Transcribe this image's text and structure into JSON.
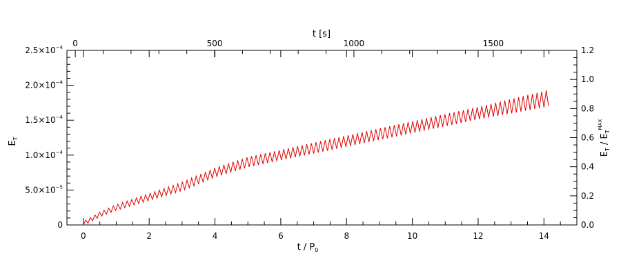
{
  "chart_data": {
    "type": "line",
    "title": "",
    "xlabel": "t / P",
    "xlabel_sub": "0",
    "top_xlabel": "t [s]",
    "ylabel": "E",
    "ylabel_sub": "T",
    "right_ylabel": "E",
    "right_ylabel_sub": "T",
    "right_ylabel_frac": "/ E",
    "right_ylabel_frac_sub": "T",
    "right_ylabel_frac_sup": "MAX",
    "xlim": [
      -0.5,
      15
    ],
    "ylim": [
      0,
      0.00025
    ],
    "top_xlim": [
      -30,
      1800
    ],
    "right_ylim": [
      0,
      1.2
    ],
    "x_ticks": [
      "0",
      "2",
      "4",
      "6",
      "8",
      "10",
      "12",
      "14"
    ],
    "x_tick_values": [
      0,
      2,
      4,
      6,
      8,
      10,
      12,
      14
    ],
    "top_x_ticks": [
      "0",
      "500",
      "1000",
      "1500"
    ],
    "top_x_tick_values": [
      0,
      500,
      1000,
      1500
    ],
    "y_tick_values": [
      0,
      5e-05,
      0.0001,
      0.00015,
      0.0002,
      0.00025
    ],
    "y_ticks": [
      {
        "mant": "0",
        "exp": ""
      },
      {
        "mant": "5.0×10",
        "exp": "−5"
      },
      {
        "mant": "1.0×10",
        "exp": "−4"
      },
      {
        "mant": "1.5×10",
        "exp": "−4"
      },
      {
        "mant": "2.0×10",
        "exp": "−4"
      },
      {
        "mant": "2.5×10",
        "exp": "−4"
      }
    ],
    "right_y_ticks": [
      "0.0",
      "0.2",
      "0.4",
      "0.6",
      "0.8",
      "1.0",
      "1.2"
    ],
    "right_y_tick_values": [
      0,
      0.2,
      0.4,
      0.6,
      0.8,
      1.0,
      1.2
    ],
    "series": [
      {
        "color": "#e00000",
        "x_start": 0,
        "x_end": 14.2,
        "oscillation_period": 0.14,
        "trend": {
          "x": [
            0,
            0.5,
            1,
            2,
            3,
            4,
            5,
            6,
            7,
            8,
            9,
            10,
            11,
            12,
            13,
            14,
            14.2
          ],
          "y": [
            2e-06,
            1.5e-05,
            2.5e-05,
            4e-05,
            5.5e-05,
            7.5e-05,
            9e-05,
            0.0001,
            0.00011,
            0.00012,
            0.00013,
            0.00014,
            0.00015,
            0.00016,
            0.00017,
            0.00018,
            0.000183
          ]
        },
        "amplitude": {
          "x": [
            0,
            1,
            4,
            8,
            12,
            14.2
          ],
          "y": [
            3e-06,
            4e-06,
            7e-06,
            8e-06,
            9e-06,
            1.2e-05
          ]
        }
      }
    ]
  }
}
